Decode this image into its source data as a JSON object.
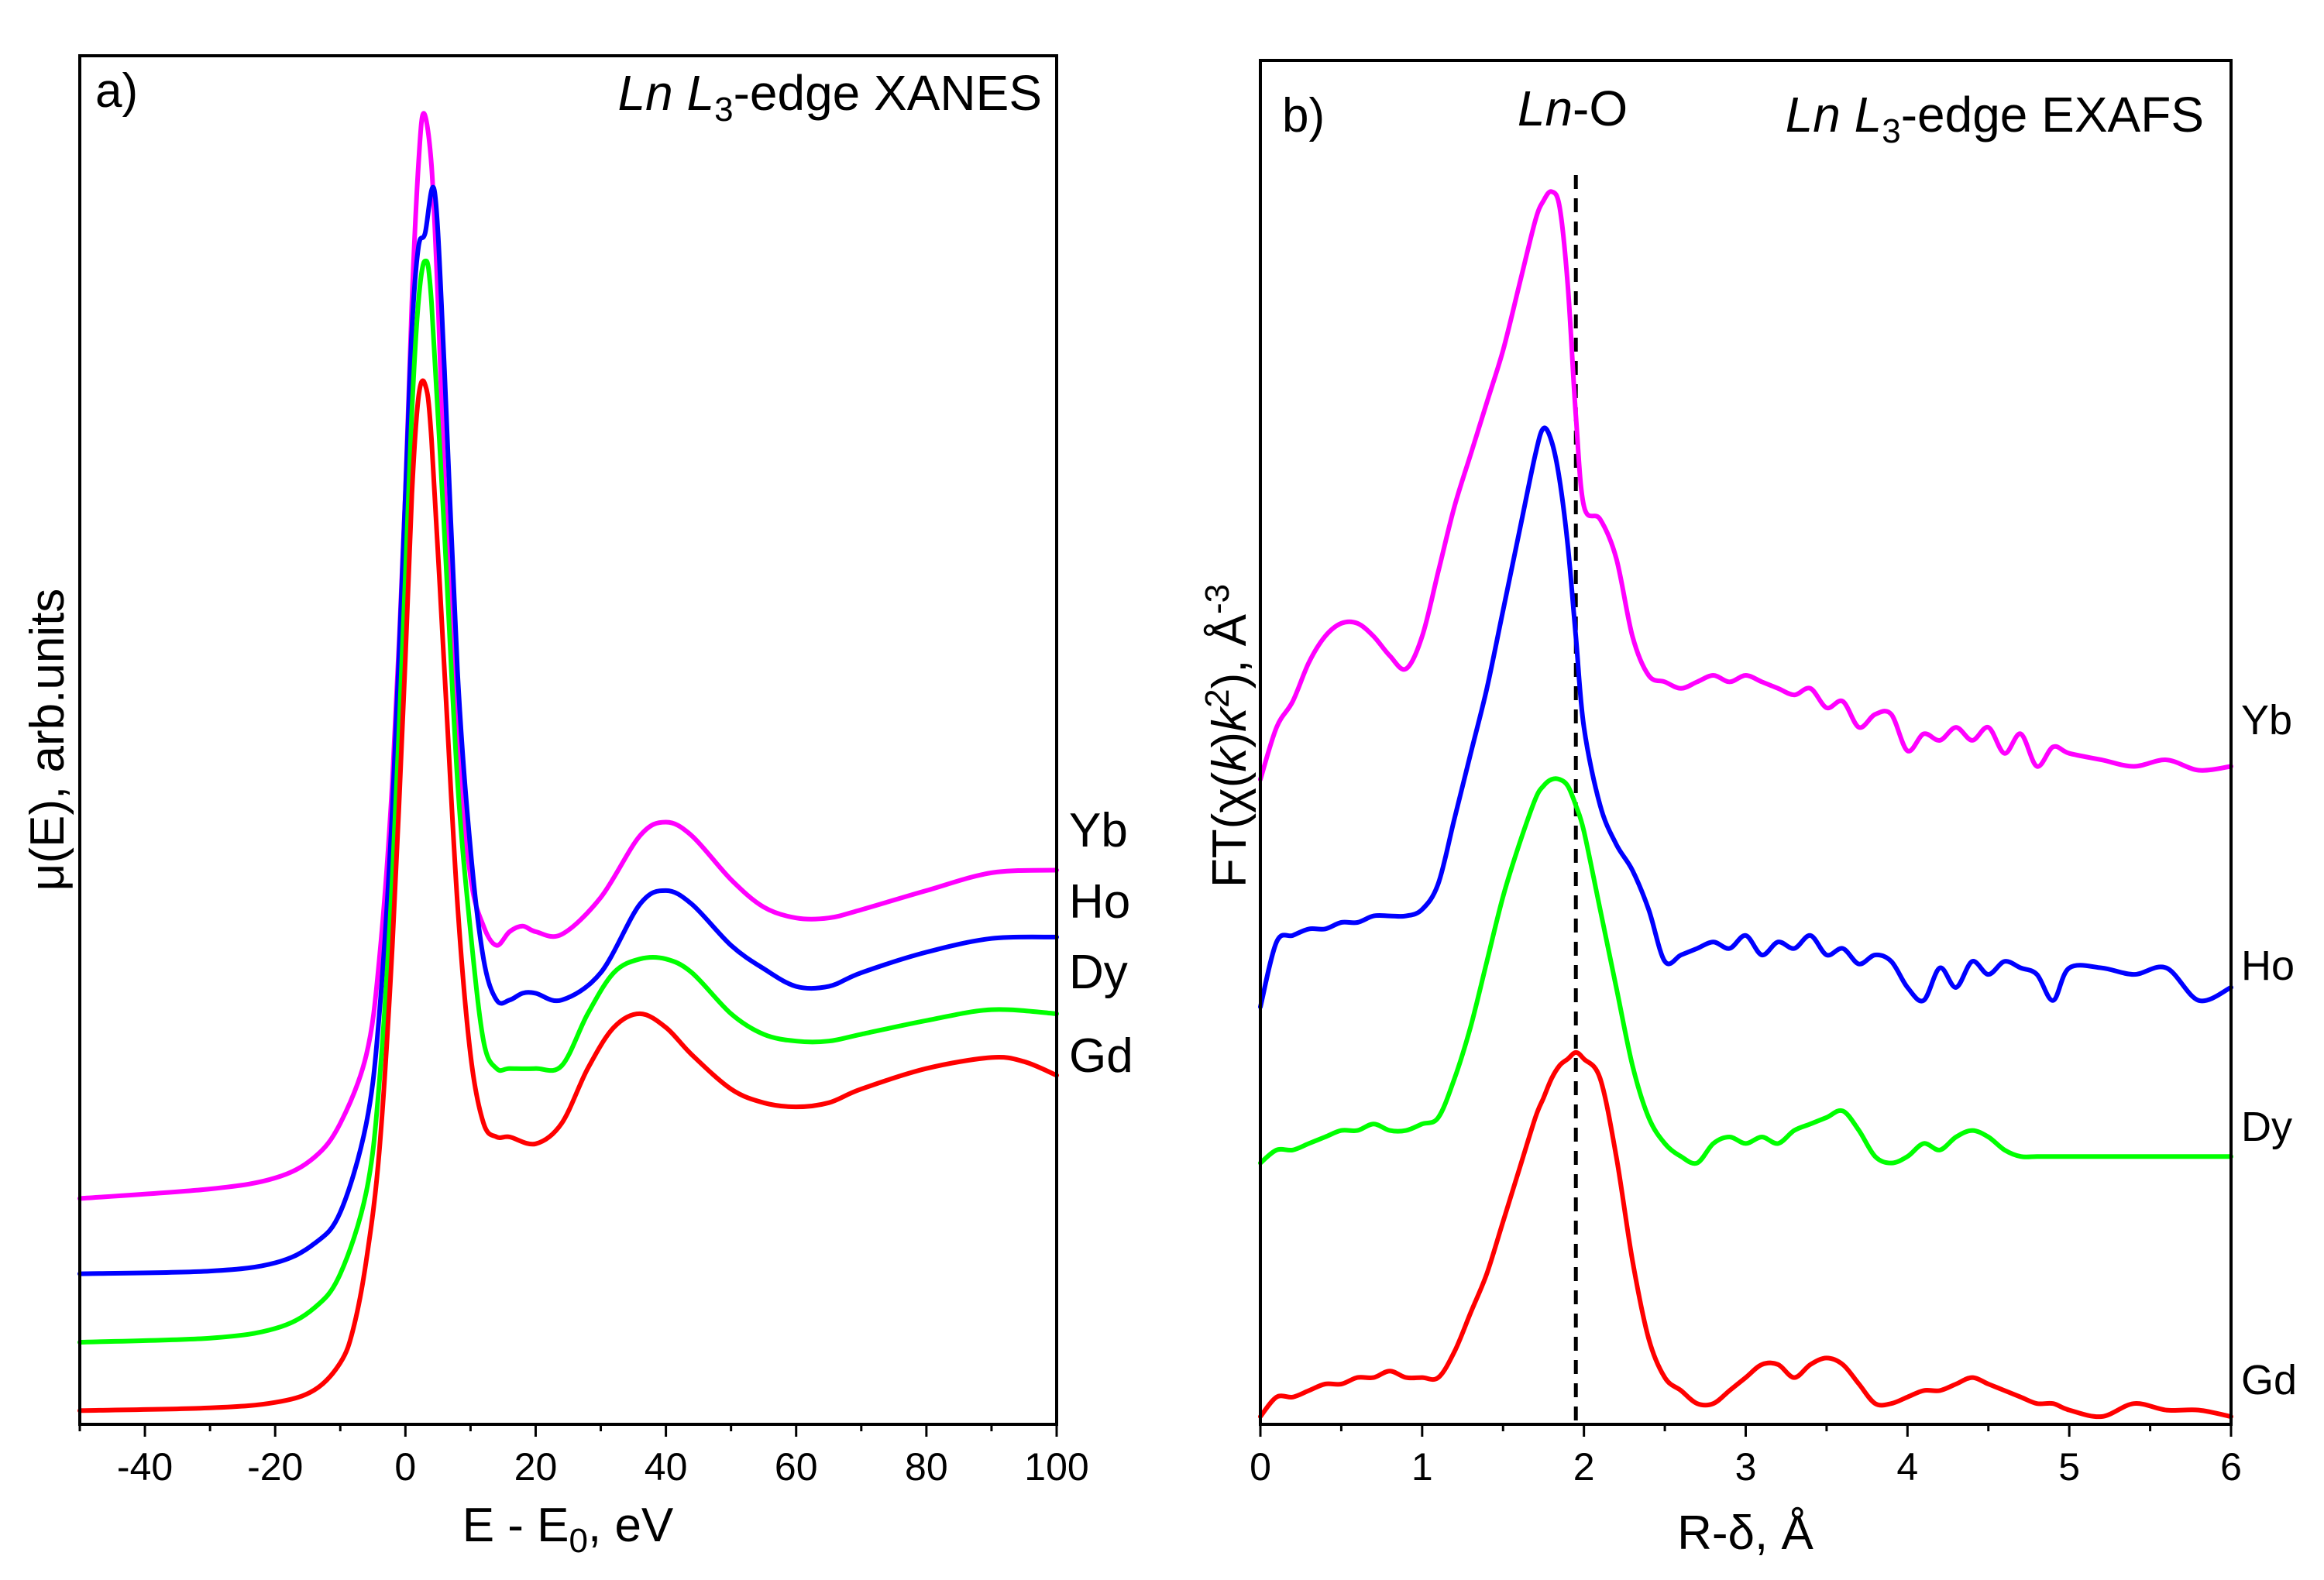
{
  "chart_data": [
    {
      "type": "line",
      "panel_label": "a)",
      "title_parts": [
        "Ln",
        " ",
        "L",
        "3",
        "-edge XANES"
      ],
      "xlabel_parts": [
        "E - E",
        "0",
        ", eV"
      ],
      "ylabel": "μ(E), arb.units",
      "xlim": [
        -50,
        100
      ],
      "ylim": [
        0,
        1
      ],
      "xticks": [
        -40,
        -20,
        0,
        20,
        40,
        60,
        80,
        100
      ],
      "xtick_labels": [
        "-40",
        "-20",
        "0",
        "20",
        "40",
        "60",
        "80",
        "100"
      ],
      "series": [
        {
          "name": "Yb",
          "color": "#ff00ff",
          "x": [
            -50,
            -30,
            -20,
            -14,
            -10,
            -6,
            -4,
            -2,
            0,
            1,
            2,
            2.8,
            4,
            5,
            6,
            8,
            10,
            12,
            14,
            16,
            18,
            20,
            24,
            30,
            36,
            40,
            44,
            50,
            55,
            60,
            65,
            70,
            80,
            90,
            100
          ],
          "y": [
            0.165,
            0.172,
            0.18,
            0.195,
            0.22,
            0.27,
            0.34,
            0.47,
            0.68,
            0.82,
            0.92,
            0.958,
            0.92,
            0.82,
            0.69,
            0.5,
            0.4,
            0.364,
            0.35,
            0.36,
            0.364,
            0.36,
            0.358,
            0.385,
            0.43,
            0.44,
            0.43,
            0.398,
            0.378,
            0.37,
            0.37,
            0.376,
            0.39,
            0.403,
            0.405
          ]
        },
        {
          "name": "Ho",
          "color": "#0000ff",
          "x": [
            -50,
            -30,
            -20,
            -14,
            -10,
            -6,
            -4,
            -2,
            0,
            1,
            2,
            3,
            4.5,
            6,
            8,
            10,
            12,
            14,
            16,
            18,
            20,
            24,
            30,
            36,
            40,
            44,
            50,
            55,
            60,
            65,
            70,
            80,
            90,
            100
          ],
          "y": [
            0.11,
            0.112,
            0.118,
            0.132,
            0.155,
            0.22,
            0.3,
            0.45,
            0.68,
            0.8,
            0.86,
            0.87,
            0.9,
            0.77,
            0.55,
            0.42,
            0.34,
            0.31,
            0.31,
            0.315,
            0.315,
            0.31,
            0.33,
            0.38,
            0.39,
            0.38,
            0.35,
            0.333,
            0.32,
            0.32,
            0.33,
            0.345,
            0.355,
            0.356
          ]
        },
        {
          "name": "Dy",
          "color": "#00ff00",
          "x": [
            -50,
            -30,
            -20,
            -14,
            -10,
            -6,
            -4,
            -2,
            0,
            1,
            2,
            3,
            4,
            6,
            8,
            10,
            12,
            14,
            16,
            20,
            24,
            28,
            32,
            36,
            40,
            44,
            50,
            55,
            60,
            65,
            70,
            80,
            90,
            100
          ],
          "y": [
            0.06,
            0.063,
            0.07,
            0.085,
            0.11,
            0.17,
            0.25,
            0.4,
            0.62,
            0.74,
            0.82,
            0.85,
            0.82,
            0.65,
            0.47,
            0.36,
            0.28,
            0.26,
            0.26,
            0.26,
            0.262,
            0.3,
            0.33,
            0.34,
            0.34,
            0.33,
            0.3,
            0.285,
            0.28,
            0.28,
            0.285,
            0.295,
            0.303,
            0.3
          ]
        },
        {
          "name": "Gd",
          "color": "#ff0000",
          "x": [
            -50,
            -30,
            -20,
            -14,
            -10,
            -8,
            -6,
            -4,
            -2,
            0,
            1,
            2,
            3,
            4,
            6,
            8,
            10,
            12,
            14,
            16,
            20,
            24,
            28,
            32,
            36,
            40,
            44,
            50,
            55,
            60,
            65,
            70,
            80,
            90,
            95,
            100
          ],
          "y": [
            0.01,
            0.012,
            0.016,
            0.025,
            0.045,
            0.07,
            0.12,
            0.2,
            0.35,
            0.56,
            0.68,
            0.75,
            0.76,
            0.72,
            0.55,
            0.38,
            0.27,
            0.22,
            0.21,
            0.21,
            0.205,
            0.22,
            0.26,
            0.29,
            0.3,
            0.29,
            0.27,
            0.245,
            0.235,
            0.232,
            0.235,
            0.245,
            0.26,
            0.268,
            0.265,
            0.255
          ]
        }
      ],
      "series_labels": [
        "Yb",
        "Ho",
        "Dy",
        "Gd"
      ]
    },
    {
      "type": "line",
      "panel_label": "b)",
      "title_parts": [
        "Ln",
        " ",
        "L",
        "3",
        "-edge EXAFS"
      ],
      "annotation_parts": [
        "Ln",
        "-O"
      ],
      "xlabel": "R-δ, Å",
      "ylabel_parts": [
        "FT(χ(",
        "k",
        ")",
        "k",
        "2",
        "), Å",
        "-3"
      ],
      "xlim": [
        0,
        6
      ],
      "ylim": [
        0,
        1
      ],
      "xticks": [
        0,
        1,
        2,
        3,
        4,
        5,
        6
      ],
      "xtick_labels": [
        "0",
        "1",
        "2",
        "3",
        "4",
        "5",
        "6"
      ],
      "reference_line_x": 1.95,
      "series": [
        {
          "name": "Yb",
          "color": "#ff00ff",
          "x": [
            0,
            0.1,
            0.2,
            0.3,
            0.4,
            0.5,
            0.6,
            0.7,
            0.8,
            0.9,
            1.0,
            1.1,
            1.2,
            1.3,
            1.4,
            1.5,
            1.6,
            1.7,
            1.75,
            1.8,
            1.85,
            1.9,
            1.95,
            2.0,
            2.1,
            2.2,
            2.3,
            2.4,
            2.5,
            2.6,
            2.7,
            2.8,
            2.9,
            3.0,
            3.1,
            3.2,
            3.3,
            3.4,
            3.5,
            3.6,
            3.7,
            3.8,
            3.9,
            4.0,
            4.1,
            4.2,
            4.3,
            4.4,
            4.5,
            4.6,
            4.7,
            4.8,
            4.9,
            5.0,
            5.2,
            5.4,
            5.6,
            5.8,
            6.0
          ],
          "y": [
            0.49,
            0.53,
            0.55,
            0.58,
            0.6,
            0.61,
            0.61,
            0.6,
            0.585,
            0.575,
            0.6,
            0.65,
            0.7,
            0.74,
            0.78,
            0.82,
            0.87,
            0.92,
            0.935,
            0.942,
            0.93,
            0.87,
            0.77,
            0.7,
            0.69,
            0.66,
            0.6,
            0.57,
            0.565,
            0.56,
            0.565,
            0.57,
            0.565,
            0.57,
            0.565,
            0.56,
            0.555,
            0.56,
            0.545,
            0.55,
            0.53,
            0.54,
            0.54,
            0.512,
            0.525,
            0.52,
            0.53,
            0.52,
            0.53,
            0.51,
            0.525,
            0.5,
            0.515,
            0.51,
            0.505,
            0.5,
            0.505,
            0.497,
            0.5
          ]
        },
        {
          "name": "Ho",
          "color": "#0000ff",
          "x": [
            0,
            0.1,
            0.2,
            0.3,
            0.4,
            0.5,
            0.6,
            0.7,
            0.8,
            0.9,
            1.0,
            1.1,
            1.2,
            1.3,
            1.4,
            1.5,
            1.6,
            1.7,
            1.75,
            1.8,
            1.85,
            1.9,
            1.95,
            2.0,
            2.1,
            2.2,
            2.3,
            2.4,
            2.5,
            2.6,
            2.7,
            2.8,
            2.9,
            3.0,
            3.1,
            3.2,
            3.3,
            3.4,
            3.5,
            3.6,
            3.7,
            3.8,
            3.9,
            4.0,
            4.1,
            4.2,
            4.3,
            4.4,
            4.5,
            4.6,
            4.7,
            4.8,
            4.9,
            5.0,
            5.2,
            5.4,
            5.6,
            5.8,
            6.0
          ],
          "y": [
            0.315,
            0.365,
            0.37,
            0.375,
            0.375,
            0.38,
            0.38,
            0.385,
            0.385,
            0.385,
            0.39,
            0.41,
            0.46,
            0.51,
            0.56,
            0.62,
            0.68,
            0.74,
            0.76,
            0.75,
            0.72,
            0.67,
            0.6,
            0.53,
            0.47,
            0.44,
            0.42,
            0.39,
            0.35,
            0.355,
            0.36,
            0.365,
            0.36,
            0.37,
            0.355,
            0.365,
            0.36,
            0.37,
            0.355,
            0.36,
            0.348,
            0.355,
            0.35,
            0.33,
            0.32,
            0.345,
            0.33,
            0.35,
            0.34,
            0.35,
            0.345,
            0.34,
            0.32,
            0.345,
            0.345,
            0.34,
            0.345,
            0.32,
            0.33
          ]
        },
        {
          "name": "Dy",
          "color": "#00ff00",
          "x": [
            0,
            0.1,
            0.2,
            0.3,
            0.4,
            0.5,
            0.6,
            0.7,
            0.8,
            0.9,
            1.0,
            1.1,
            1.2,
            1.3,
            1.4,
            1.5,
            1.6,
            1.7,
            1.75,
            1.8,
            1.85,
            1.9,
            1.95,
            2.0,
            2.1,
            2.2,
            2.3,
            2.4,
            2.5,
            2.6,
            2.7,
            2.8,
            2.9,
            3.0,
            3.1,
            3.2,
            3.3,
            3.4,
            3.5,
            3.6,
            3.7,
            3.8,
            3.9,
            4.0,
            4.1,
            4.2,
            4.3,
            4.4,
            4.5,
            4.6,
            4.7,
            4.8,
            4.9,
            5.0,
            5.2,
            5.4,
            5.6,
            5.8,
            6.0
          ],
          "y": [
            0.195,
            0.205,
            0.205,
            0.21,
            0.215,
            0.22,
            0.22,
            0.225,
            0.22,
            0.22,
            0.225,
            0.23,
            0.26,
            0.3,
            0.35,
            0.4,
            0.44,
            0.475,
            0.485,
            0.49,
            0.49,
            0.485,
            0.47,
            0.45,
            0.39,
            0.33,
            0.27,
            0.23,
            0.21,
            0.2,
            0.195,
            0.21,
            0.215,
            0.21,
            0.215,
            0.21,
            0.22,
            0.225,
            0.23,
            0.235,
            0.22,
            0.2,
            0.195,
            0.2,
            0.21,
            0.205,
            0.215,
            0.22,
            0.215,
            0.205,
            0.2,
            0.2,
            0.2,
            0.2,
            0.2,
            0.2,
            0.2,
            0.2,
            0.2
          ]
        },
        {
          "name": "Gd",
          "color": "#ff0000",
          "x": [
            0,
            0.1,
            0.2,
            0.3,
            0.4,
            0.5,
            0.6,
            0.7,
            0.8,
            0.9,
            1.0,
            1.1,
            1.2,
            1.3,
            1.4,
            1.5,
            1.6,
            1.7,
            1.75,
            1.8,
            1.85,
            1.9,
            1.95,
            2.0,
            2.1,
            2.2,
            2.3,
            2.4,
            2.5,
            2.6,
            2.7,
            2.8,
            2.9,
            3.0,
            3.1,
            3.2,
            3.3,
            3.4,
            3.5,
            3.6,
            3.7,
            3.8,
            3.9,
            4.0,
            4.1,
            4.2,
            4.3,
            4.4,
            4.5,
            4.6,
            4.7,
            4.8,
            4.9,
            5.0,
            5.2,
            5.4,
            5.6,
            5.8,
            6.0
          ],
          "y": [
            0.0,
            0.015,
            0.015,
            0.02,
            0.025,
            0.025,
            0.03,
            0.03,
            0.035,
            0.03,
            0.03,
            0.03,
            0.05,
            0.08,
            0.11,
            0.15,
            0.19,
            0.23,
            0.245,
            0.26,
            0.27,
            0.275,
            0.28,
            0.275,
            0.26,
            0.2,
            0.12,
            0.06,
            0.03,
            0.02,
            0.01,
            0.01,
            0.02,
            0.03,
            0.04,
            0.04,
            0.03,
            0.04,
            0.045,
            0.04,
            0.025,
            0.01,
            0.01,
            0.015,
            0.02,
            0.02,
            0.025,
            0.03,
            0.025,
            0.02,
            0.015,
            0.01,
            0.01,
            0.005,
            0.0,
            0.01,
            0.005,
            0.005,
            0.0
          ]
        }
      ],
      "series_labels": [
        "Yb",
        "Ho",
        "Dy",
        "Gd"
      ]
    }
  ]
}
